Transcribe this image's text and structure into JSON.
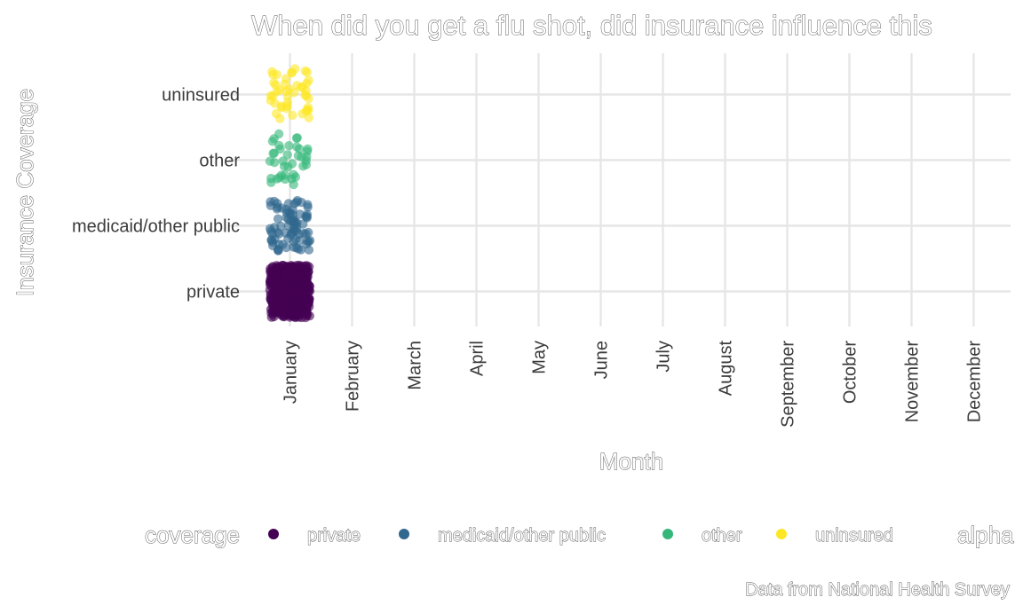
{
  "chart_data": {
    "type": "scatter",
    "title": "When did you get a flu shot, did insurance influence this",
    "xlabel": "Month",
    "ylabel": "Insurance Coverage",
    "caption": "Data from National Health Survey",
    "x_categories": [
      "January",
      "February",
      "March",
      "April",
      "May",
      "June",
      "July",
      "August",
      "September",
      "October",
      "November",
      "December"
    ],
    "y_categories": [
      "private",
      "medicaid/other public",
      "other",
      "uninsured"
    ],
    "grid": true,
    "legend": {
      "position": "bottom",
      "title": "coverage",
      "entries": [
        "private",
        "medicaid/other public",
        "other",
        "uninsured"
      ],
      "extra_title": "alpha"
    },
    "colors": {
      "private": "#440154",
      "medicaid/other public": "#31688e",
      "other": "#35b779",
      "uninsured": "#fde725"
    },
    "jitter": {
      "x": 0.45,
      "y": 0.4
    },
    "series": [
      {
        "name": "private",
        "month": "January",
        "count": 420
      },
      {
        "name": "medicaid/other public",
        "month": "January",
        "count": 80
      },
      {
        "name": "other",
        "month": "January",
        "count": 38
      },
      {
        "name": "uninsured",
        "month": "January",
        "count": 45
      }
    ]
  }
}
